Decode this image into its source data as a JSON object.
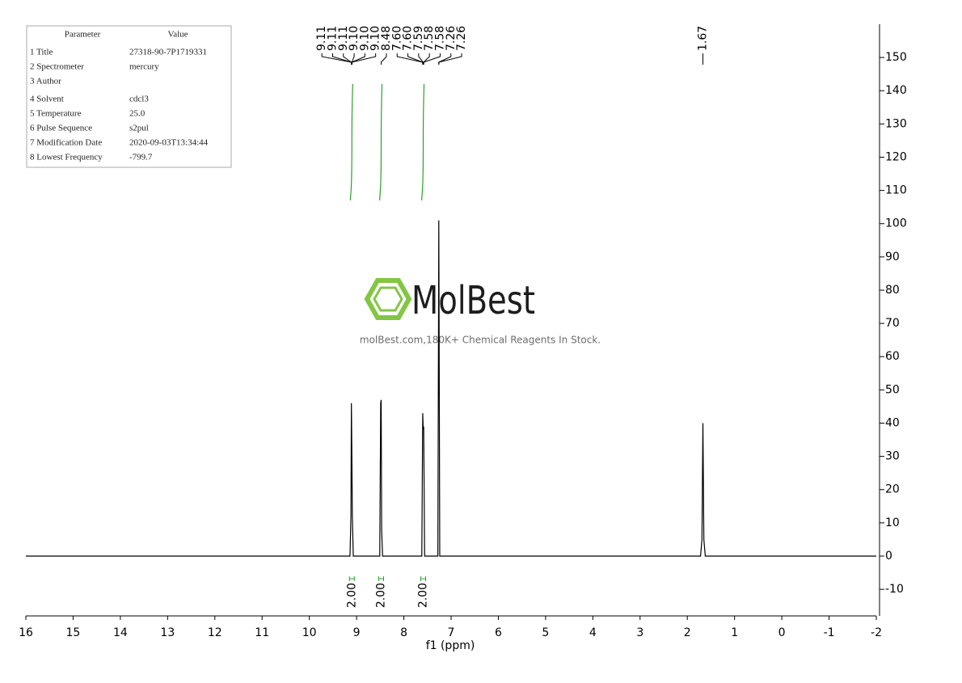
{
  "chart_data": {
    "type": "nmr",
    "xlabel": "f1 (ppm)",
    "xlim": [
      16,
      -2
    ],
    "xticks": [
      16,
      15,
      14,
      13,
      12,
      11,
      10,
      9,
      8,
      7,
      6,
      5,
      4,
      3,
      2,
      1,
      0,
      -1,
      -2
    ],
    "ylim": [
      -18,
      160
    ],
    "yticks": [
      150,
      140,
      130,
      120,
      110,
      100,
      90,
      80,
      70,
      60,
      50,
      40,
      30,
      20,
      10,
      0,
      -10
    ],
    "spectrum": {
      "color": "#000000",
      "x": [
        16,
        9.14,
        9.12,
        9.11,
        9.1,
        9.09,
        9.07,
        8.51,
        8.49,
        8.48,
        8.47,
        8.45,
        7.62,
        7.6,
        7.59,
        7.58,
        7.56,
        7.28,
        7.26,
        7.24,
        1.72,
        1.69,
        1.67,
        1.65,
        1.62,
        -2
      ],
      "values": [
        0,
        0,
        12,
        46,
        30,
        12,
        0,
        0,
        46,
        47,
        8,
        0,
        0,
        43,
        38,
        39,
        0,
        0,
        101,
        0,
        0,
        5,
        40,
        5,
        0,
        0
      ]
    },
    "peak_labels": {
      "color": "#000000",
      "values": [
        9.11,
        9.11,
        9.11,
        9.1,
        9.1,
        9.1,
        8.48,
        7.6,
        7.6,
        7.59,
        7.58,
        7.58,
        7.26,
        7.26,
        1.67
      ],
      "value_labels": [
        "9.11",
        "9.11",
        "9.11",
        "9.10",
        "9.10",
        "9.10",
        "8.48",
        "7.60",
        "7.60",
        "7.59",
        "7.58",
        "7.58",
        "7.26",
        "7.26",
        "1.67"
      ]
    },
    "integrals": {
      "color": "#2ca02c",
      "x": [
        9.1,
        8.48,
        7.59
      ],
      "values": [
        2,
        2,
        2
      ],
      "value_labels": [
        "2.00",
        "2.00",
        "2.00"
      ]
    }
  },
  "parameters": {
    "header": [
      "Parameter",
      "Value"
    ],
    "rows": [
      [
        "1 Title",
        "27318-90-7P1719331"
      ],
      [
        "2 Spectrometer",
        "mercury"
      ],
      [
        "3 Author"
      ],
      [
        "4 Solvent",
        "cdcl3"
      ],
      [
        "5 Temperature",
        "25.0"
      ],
      [
        "6 Pulse Sequence",
        "s2pul"
      ],
      [
        "7 Modification Date",
        "2020-09-03T13:34:44"
      ],
      [
        "8 Lowest Frequency",
        "-799.7"
      ]
    ]
  },
  "watermark": {
    "brand": "MolBest",
    "tagline": "molBest.com,180K+ Chemical Reagents In Stock."
  }
}
